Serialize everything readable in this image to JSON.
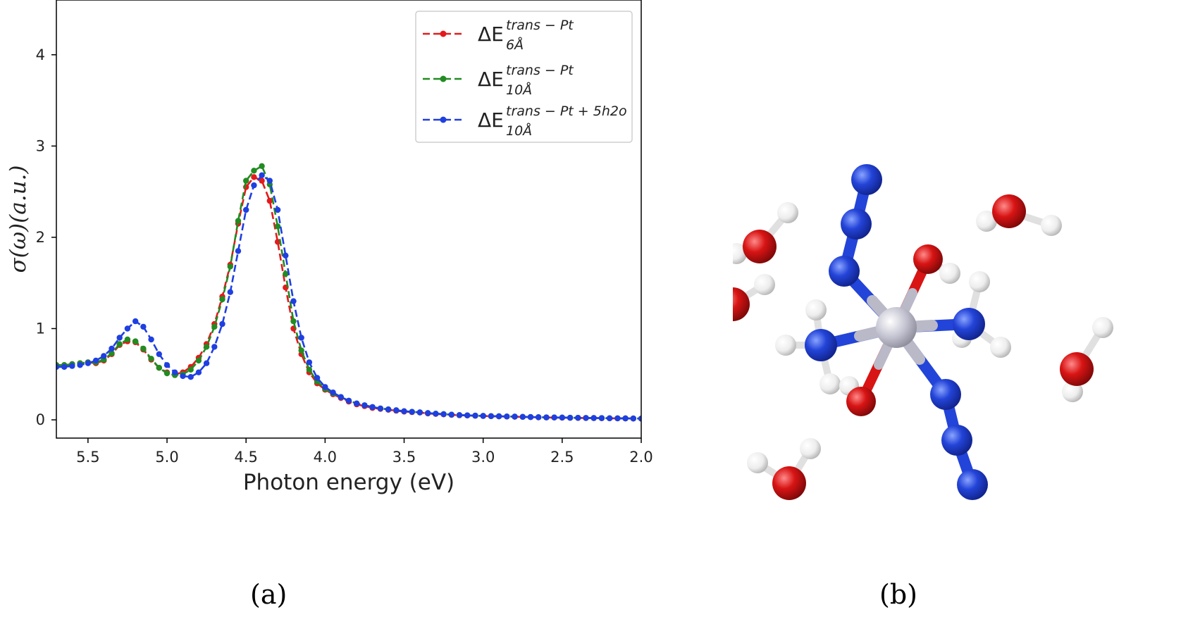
{
  "figure": {
    "panel_a_caption": "(a)",
    "panel_b_caption": "(b)"
  },
  "chart_data": {
    "type": "line",
    "xlabel": "Photon energy (eV)",
    "ylabel": "σ(ω)(a.u.)",
    "xlim": [
      5.7,
      2.0
    ],
    "ylim": [
      -0.2,
      4.6
    ],
    "x_inverted": true,
    "xticks": [
      "5.5",
      "5.0",
      "4.5",
      "4.0",
      "3.5",
      "3.0",
      "2.5",
      "2.0"
    ],
    "yticks": [
      "0",
      "1",
      "2",
      "3",
      "4"
    ],
    "grid": false,
    "legend_position": "top-right",
    "x": [
      5.7,
      5.65,
      5.6,
      5.55,
      5.5,
      5.45,
      5.4,
      5.35,
      5.3,
      5.25,
      5.2,
      5.15,
      5.1,
      5.05,
      5.0,
      4.95,
      4.9,
      4.85,
      4.8,
      4.75,
      4.7,
      4.65,
      4.6,
      4.55,
      4.5,
      4.45,
      4.4,
      4.35,
      4.3,
      4.25,
      4.2,
      4.15,
      4.1,
      4.05,
      4.0,
      3.95,
      3.9,
      3.85,
      3.8,
      3.75,
      3.7,
      3.65,
      3.6,
      3.55,
      3.5,
      3.45,
      3.4,
      3.35,
      3.3,
      3.25,
      3.2,
      3.15,
      3.1,
      3.05,
      3.0,
      2.95,
      2.9,
      2.85,
      2.8,
      2.75,
      2.7,
      2.65,
      2.6,
      2.55,
      2.5,
      2.45,
      2.4,
      2.35,
      2.3,
      2.25,
      2.2,
      2.15,
      2.1,
      2.05,
      2.0
    ],
    "series": [
      {
        "color": "#e41a1c",
        "linestyle": "dashed",
        "marker": "dot",
        "legend_parts": [
          "ΔE",
          "trans − Pt",
          "6Å"
        ],
        "values": [
          0.6,
          0.6,
          0.61,
          0.62,
          0.63,
          0.62,
          0.65,
          0.72,
          0.82,
          0.86,
          0.85,
          0.77,
          0.66,
          0.57,
          0.52,
          0.5,
          0.52,
          0.58,
          0.68,
          0.83,
          1.05,
          1.35,
          1.7,
          2.15,
          2.55,
          2.66,
          2.62,
          2.4,
          1.95,
          1.45,
          1.0,
          0.72,
          0.52,
          0.4,
          0.33,
          0.28,
          0.24,
          0.2,
          0.17,
          0.15,
          0.13,
          0.12,
          0.11,
          0.1,
          0.09,
          0.085,
          0.08,
          0.07,
          0.065,
          0.06,
          0.055,
          0.05,
          0.048,
          0.045,
          0.042,
          0.04,
          0.038,
          0.036,
          0.034,
          0.032,
          0.03,
          0.028,
          0.026,
          0.025,
          0.024,
          0.022,
          0.021,
          0.02,
          0.019,
          0.018,
          0.017,
          0.016,
          0.015,
          0.014,
          0.013
        ]
      },
      {
        "color": "#228b22",
        "linestyle": "dashed",
        "marker": "dot",
        "legend_parts": [
          "ΔE",
          "trans − Pt",
          "10Å"
        ],
        "values": [
          0.6,
          0.6,
          0.61,
          0.62,
          0.63,
          0.63,
          0.66,
          0.73,
          0.83,
          0.88,
          0.86,
          0.78,
          0.67,
          0.57,
          0.51,
          0.49,
          0.5,
          0.55,
          0.65,
          0.8,
          1.02,
          1.32,
          1.68,
          2.18,
          2.62,
          2.73,
          2.78,
          2.58,
          2.12,
          1.6,
          1.08,
          0.76,
          0.55,
          0.42,
          0.34,
          0.29,
          0.25,
          0.21,
          0.18,
          0.16,
          0.14,
          0.125,
          0.115,
          0.105,
          0.095,
          0.088,
          0.082,
          0.074,
          0.068,
          0.062,
          0.057,
          0.052,
          0.049,
          0.046,
          0.043,
          0.041,
          0.039,
          0.037,
          0.035,
          0.033,
          0.031,
          0.029,
          0.027,
          0.026,
          0.025,
          0.023,
          0.022,
          0.021,
          0.02,
          0.019,
          0.018,
          0.017,
          0.016,
          0.015,
          0.014
        ]
      },
      {
        "color": "#1f3fe0",
        "linestyle": "dashed",
        "marker": "dot",
        "legend_parts": [
          "ΔE",
          "trans − Pt + 5h2o",
          "10Å"
        ],
        "values": [
          0.58,
          0.58,
          0.59,
          0.6,
          0.62,
          0.65,
          0.7,
          0.78,
          0.9,
          1.0,
          1.08,
          1.02,
          0.88,
          0.72,
          0.6,
          0.52,
          0.48,
          0.47,
          0.52,
          0.62,
          0.8,
          1.05,
          1.4,
          1.85,
          2.3,
          2.57,
          2.68,
          2.62,
          2.3,
          1.8,
          1.3,
          0.9,
          0.63,
          0.46,
          0.36,
          0.3,
          0.25,
          0.21,
          0.18,
          0.16,
          0.14,
          0.125,
          0.115,
          0.105,
          0.095,
          0.088,
          0.082,
          0.074,
          0.068,
          0.062,
          0.057,
          0.052,
          0.049,
          0.046,
          0.043,
          0.041,
          0.039,
          0.037,
          0.035,
          0.033,
          0.031,
          0.029,
          0.027,
          0.026,
          0.025,
          0.023,
          0.022,
          0.021,
          0.02,
          0.019,
          0.018,
          0.017,
          0.016,
          0.015,
          0.014
        ]
      }
    ]
  },
  "molecule": {
    "atom_colors": {
      "platinum": "#c4c4d2",
      "nitrogen": "#2344d8",
      "oxygen": "#d81414",
      "hydrogen": "#f0f0f0"
    }
  }
}
